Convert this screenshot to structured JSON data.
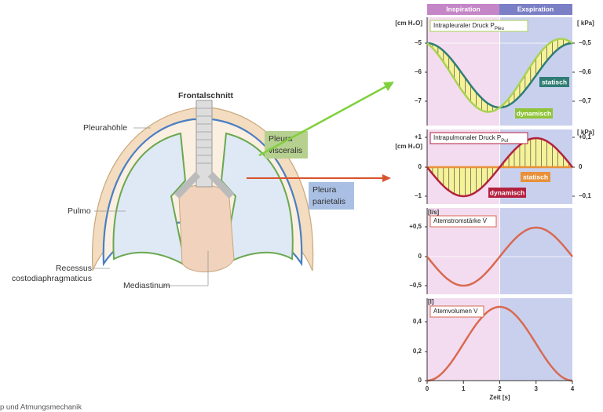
{
  "diagram": {
    "title": "Frontalschnitt",
    "labels": {
      "pleurahoehle": "Pleurahöhle",
      "pulmo": "Pulmo",
      "recessus_1": "Recessus",
      "recessus_2": "costodiaphragmaticus",
      "mediastinum": "Mediastinum",
      "visceralis_1": "Pleura",
      "visceralis_2": "visceralis",
      "parietalis_1": "Pleura",
      "parietalis_2": "parietalis"
    },
    "footer": "p und Atmungsmechanik"
  },
  "charts": {
    "phases": [
      "Inspiration",
      "Exspiration"
    ],
    "panels": [
      {
        "title": "Intrapleuraler Druck P",
        "title_sub": "Pleu",
        "left_unit": "[cm H₂O]",
        "right_unit": "[ kPa]",
        "left_ticks": [
          "−5",
          "−6",
          "−7"
        ],
        "right_ticks": [
          "−0,5",
          "−0,6",
          "−0,7"
        ],
        "tags": [
          "statisch",
          "dynamisch"
        ]
      },
      {
        "title": "Intrapulmonaler Druck P",
        "title_sub": "Pul",
        "left_unit": "[cm H₂O]",
        "right_unit": "[ kPa]",
        "left_ticks": [
          "+1",
          "0",
          "−1"
        ],
        "right_ticks": [
          "+0,1",
          "0",
          "−0,1"
        ],
        "tags": [
          "statisch",
          "dynamisch"
        ]
      },
      {
        "title": "Atemstromstärke V̇",
        "left_unit": "[l/s]",
        "left_ticks": [
          "+0,5",
          "0",
          "−0,5"
        ]
      },
      {
        "title": "Atemvolumen V",
        "left_unit": "[l]",
        "left_ticks": [
          "0,4",
          "0,2",
          "0"
        ]
      }
    ],
    "x_ticks": [
      "0",
      "1",
      "2",
      "3",
      "4"
    ],
    "x_label": "Zeit [s]"
  }
}
